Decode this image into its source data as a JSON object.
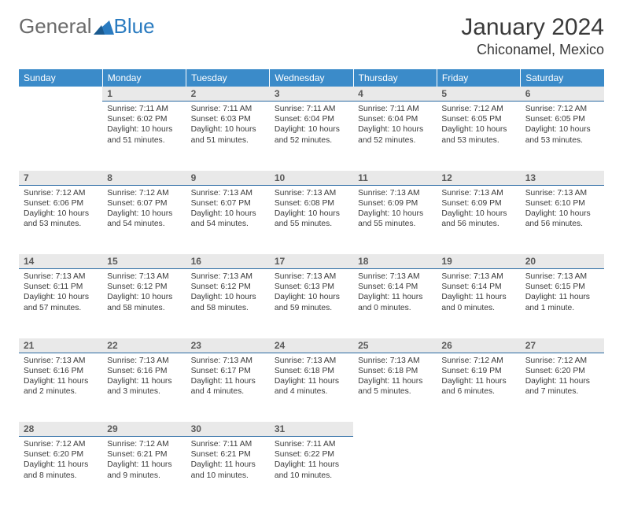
{
  "brand": {
    "name1": "General",
    "name2": "Blue"
  },
  "title": "January 2024",
  "location": "Chiconamel, Mexico",
  "colors": {
    "header_bg": "#3b8bc9",
    "header_text": "#ffffff",
    "daynum_bg": "#e9e9e9",
    "daynum_border": "#2a6aa3",
    "body_text": "#3a3a3a",
    "brand_gray": "#6a6a6a",
    "brand_blue": "#2a7bc0"
  },
  "weekdays": [
    "Sunday",
    "Monday",
    "Tuesday",
    "Wednesday",
    "Thursday",
    "Friday",
    "Saturday"
  ],
  "weeks": [
    {
      "nums": [
        "",
        "1",
        "2",
        "3",
        "4",
        "5",
        "6"
      ],
      "cells": [
        null,
        {
          "sr": "7:11 AM",
          "ss": "6:02 PM",
          "dl": "10 hours and 51 minutes."
        },
        {
          "sr": "7:11 AM",
          "ss": "6:03 PM",
          "dl": "10 hours and 51 minutes."
        },
        {
          "sr": "7:11 AM",
          "ss": "6:04 PM",
          "dl": "10 hours and 52 minutes."
        },
        {
          "sr": "7:11 AM",
          "ss": "6:04 PM",
          "dl": "10 hours and 52 minutes."
        },
        {
          "sr": "7:12 AM",
          "ss": "6:05 PM",
          "dl": "10 hours and 53 minutes."
        },
        {
          "sr": "7:12 AM",
          "ss": "6:05 PM",
          "dl": "10 hours and 53 minutes."
        }
      ]
    },
    {
      "nums": [
        "7",
        "8",
        "9",
        "10",
        "11",
        "12",
        "13"
      ],
      "cells": [
        {
          "sr": "7:12 AM",
          "ss": "6:06 PM",
          "dl": "10 hours and 53 minutes."
        },
        {
          "sr": "7:12 AM",
          "ss": "6:07 PM",
          "dl": "10 hours and 54 minutes."
        },
        {
          "sr": "7:13 AM",
          "ss": "6:07 PM",
          "dl": "10 hours and 54 minutes."
        },
        {
          "sr": "7:13 AM",
          "ss": "6:08 PM",
          "dl": "10 hours and 55 minutes."
        },
        {
          "sr": "7:13 AM",
          "ss": "6:09 PM",
          "dl": "10 hours and 55 minutes."
        },
        {
          "sr": "7:13 AM",
          "ss": "6:09 PM",
          "dl": "10 hours and 56 minutes."
        },
        {
          "sr": "7:13 AM",
          "ss": "6:10 PM",
          "dl": "10 hours and 56 minutes."
        }
      ]
    },
    {
      "nums": [
        "14",
        "15",
        "16",
        "17",
        "18",
        "19",
        "20"
      ],
      "cells": [
        {
          "sr": "7:13 AM",
          "ss": "6:11 PM",
          "dl": "10 hours and 57 minutes."
        },
        {
          "sr": "7:13 AM",
          "ss": "6:12 PM",
          "dl": "10 hours and 58 minutes."
        },
        {
          "sr": "7:13 AM",
          "ss": "6:12 PM",
          "dl": "10 hours and 58 minutes."
        },
        {
          "sr": "7:13 AM",
          "ss": "6:13 PM",
          "dl": "10 hours and 59 minutes."
        },
        {
          "sr": "7:13 AM",
          "ss": "6:14 PM",
          "dl": "11 hours and 0 minutes."
        },
        {
          "sr": "7:13 AM",
          "ss": "6:14 PM",
          "dl": "11 hours and 0 minutes."
        },
        {
          "sr": "7:13 AM",
          "ss": "6:15 PM",
          "dl": "11 hours and 1 minute."
        }
      ]
    },
    {
      "nums": [
        "21",
        "22",
        "23",
        "24",
        "25",
        "26",
        "27"
      ],
      "cells": [
        {
          "sr": "7:13 AM",
          "ss": "6:16 PM",
          "dl": "11 hours and 2 minutes."
        },
        {
          "sr": "7:13 AM",
          "ss": "6:16 PM",
          "dl": "11 hours and 3 minutes."
        },
        {
          "sr": "7:13 AM",
          "ss": "6:17 PM",
          "dl": "11 hours and 4 minutes."
        },
        {
          "sr": "7:13 AM",
          "ss": "6:18 PM",
          "dl": "11 hours and 4 minutes."
        },
        {
          "sr": "7:13 AM",
          "ss": "6:18 PM",
          "dl": "11 hours and 5 minutes."
        },
        {
          "sr": "7:12 AM",
          "ss": "6:19 PM",
          "dl": "11 hours and 6 minutes."
        },
        {
          "sr": "7:12 AM",
          "ss": "6:20 PM",
          "dl": "11 hours and 7 minutes."
        }
      ]
    },
    {
      "nums": [
        "28",
        "29",
        "30",
        "31",
        "",
        "",
        ""
      ],
      "cells": [
        {
          "sr": "7:12 AM",
          "ss": "6:20 PM",
          "dl": "11 hours and 8 minutes."
        },
        {
          "sr": "7:12 AM",
          "ss": "6:21 PM",
          "dl": "11 hours and 9 minutes."
        },
        {
          "sr": "7:11 AM",
          "ss": "6:21 PM",
          "dl": "11 hours and 10 minutes."
        },
        {
          "sr": "7:11 AM",
          "ss": "6:22 PM",
          "dl": "11 hours and 10 minutes."
        },
        null,
        null,
        null
      ]
    }
  ],
  "labels": {
    "sunrise": "Sunrise:",
    "sunset": "Sunset:",
    "daylight": "Daylight:"
  }
}
